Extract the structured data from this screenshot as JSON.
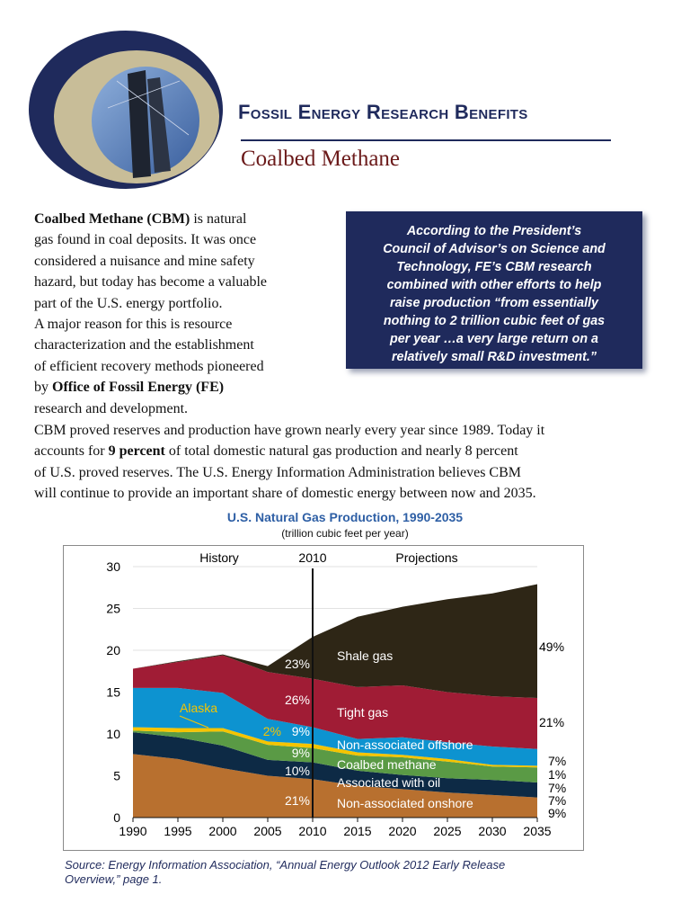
{
  "header": {
    "title": "Fossil Energy Research Benefits",
    "subtitle": "Coalbed Methane",
    "logo_colors": {
      "outer": "#1f2a5c",
      "ring": "#c8bd98"
    }
  },
  "intro": {
    "lines": [
      {
        "bold": "Coalbed Methane (CBM)",
        "text": " is natural"
      },
      {
        "text": "gas found in coal deposits. It was once"
      },
      {
        "text": "considered a nuisance and mine safety"
      },
      {
        "text": "hazard, but today has become a valuable"
      },
      {
        "text": "part of the U.S. energy portfolio."
      },
      {
        "text": "A major reason for this is resource"
      },
      {
        "text": "characterization and the establishment"
      },
      {
        "text": "of efficient recovery methods pioneered"
      },
      {
        "pre": "by ",
        "bold": "Office of Fossil Energy (FE)"
      },
      {
        "text": "research and development."
      }
    ]
  },
  "quote": {
    "lines": [
      "According to the President’s",
      "Council of Advisor’s on Science and",
      "Technology, FE’s CBM research",
      "combined with other efforts to help",
      "raise production “from essentially",
      "nothing to 2 trillion cubic feet of gas",
      "per year …a very large return on a",
      "relatively small R&D investment.”"
    ]
  },
  "body": {
    "line1": "CBM proved reserves and production have grown nearly every year since 1989. Today it",
    "line2_pre": "accounts for ",
    "line2_bold": "9 percent",
    "line2_post": " of total domestic natural gas production and nearly 8 percent",
    "line3": "of U.S. proved reserves. The U.S. Energy Information Administration believes CBM",
    "line4": "will continue to provide an important share of domestic energy between now and 2035."
  },
  "chart_data": {
    "type": "area",
    "stacked": true,
    "title": "U.S. Natural Gas Production, 1990-2035",
    "subtitle": "(trillion cubic feet per year)",
    "x": [
      1990,
      1995,
      2000,
      2005,
      2010,
      2015,
      2020,
      2025,
      2030,
      2035
    ],
    "xlim": [
      1990,
      2035
    ],
    "ylim": [
      0,
      30
    ],
    "xticks": [
      "1990",
      "1995",
      "2000",
      "2005",
      "2010",
      "2015",
      "2020",
      "2025",
      "2030",
      "2035"
    ],
    "yticks": [
      "0",
      "5",
      "10",
      "15",
      "20",
      "25",
      "30"
    ],
    "grid": "horizontal",
    "divider": {
      "year": 2010,
      "label": "2010",
      "left_label": "History",
      "right_label": "Projections"
    },
    "series": [
      {
        "name": "Non-associated onshore",
        "color": "#b8702f",
        "values": [
          7.6,
          7.0,
          5.9,
          5.0,
          4.6,
          3.8,
          3.4,
          3.0,
          2.7,
          2.4
        ],
        "share_2010": "21%",
        "share_2035": "9%"
      },
      {
        "name": "Associated with oil",
        "color": "#0d2a45",
        "values": [
          2.6,
          2.6,
          2.7,
          1.9,
          2.0,
          1.8,
          1.7,
          1.7,
          1.8,
          1.8
        ],
        "share_2010": "10%",
        "share_2035": "7%"
      },
      {
        "name": "Coalbed methane",
        "color": "#5a9a45",
        "values": [
          0.2,
          0.6,
          1.7,
          1.8,
          1.7,
          1.8,
          2.1,
          2.0,
          1.6,
          1.8
        ],
        "share_2010": "9%",
        "share_2035": "7%"
      },
      {
        "name": "Alaska",
        "color": "#f5c400",
        "values": [
          0.4,
          0.5,
          0.4,
          0.4,
          0.5,
          0.4,
          0.3,
          0.3,
          0.2,
          0.2
        ],
        "share_2010": "2%",
        "share_2035": "1%"
      },
      {
        "name": "Non-associated offshore",
        "color": "#0d93d0",
        "values": [
          4.7,
          4.8,
          4.2,
          2.7,
          2.0,
          1.6,
          2.1,
          2.0,
          2.2,
          2.0
        ],
        "share_2010": "9%",
        "share_2035": "7%"
      },
      {
        "name": "Tight gas",
        "color": "#a01c35",
        "values": [
          2.3,
          3.1,
          4.5,
          5.6,
          5.8,
          6.2,
          6.2,
          6.0,
          6.0,
          6.1
        ],
        "share_2010": "26%",
        "share_2035": "21%"
      },
      {
        "name": "Shale gas",
        "color": "#2e2616",
        "values": [
          0,
          0.1,
          0.1,
          0.7,
          5.0,
          8.4,
          9.4,
          11.1,
          12.3,
          13.6
        ],
        "share_2010": "23%",
        "share_2035": "49%"
      }
    ]
  },
  "source": {
    "line1": "Source: Energy Information Association, “Annual Energy Outlook 2012 Early Release",
    "line2": "Overview,” page 1."
  }
}
